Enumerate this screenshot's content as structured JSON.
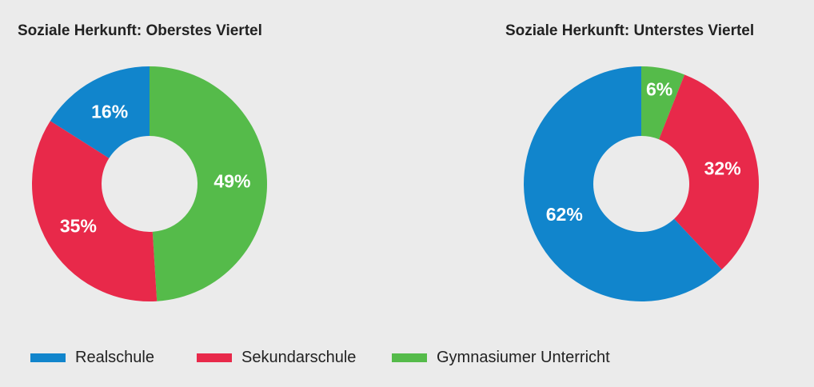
{
  "colors": {
    "Realschule": "#1185cc",
    "Sekundarschule": "#e8294a",
    "Gymnasiumer Unterricht": "#55bb4a"
  },
  "chart_data": [
    {
      "type": "pie",
      "style": "donut",
      "title": "Soziale Herkunft: Oberstes Viertel",
      "unit": "%",
      "slices": [
        {
          "name": "Gymnasiumer Unterricht",
          "value": 49,
          "label": "49%"
        },
        {
          "name": "Sekundarschule",
          "value": 35,
          "label": "35%"
        },
        {
          "name": "Realschule",
          "value": 16,
          "label": "16%"
        }
      ]
    },
    {
      "type": "pie",
      "style": "donut",
      "title": "Soziale Herkunft: Unterstes Viertel",
      "unit": "%",
      "slices": [
        {
          "name": "Gymnasiumer Unterricht",
          "value": 6,
          "label": "6%"
        },
        {
          "name": "Sekundarschule",
          "value": 32,
          "label": "32%"
        },
        {
          "name": "Realschule",
          "value": 62,
          "label": "62%"
        }
      ]
    }
  ],
  "legend": {
    "placement": "bottom",
    "items": [
      {
        "label": "Realschule",
        "color": "#1185cc"
      },
      {
        "label": "Sekundarschule",
        "color": "#e8294a"
      },
      {
        "label": "Gymnasiumer Unterricht",
        "color": "#55bb4a"
      }
    ]
  }
}
